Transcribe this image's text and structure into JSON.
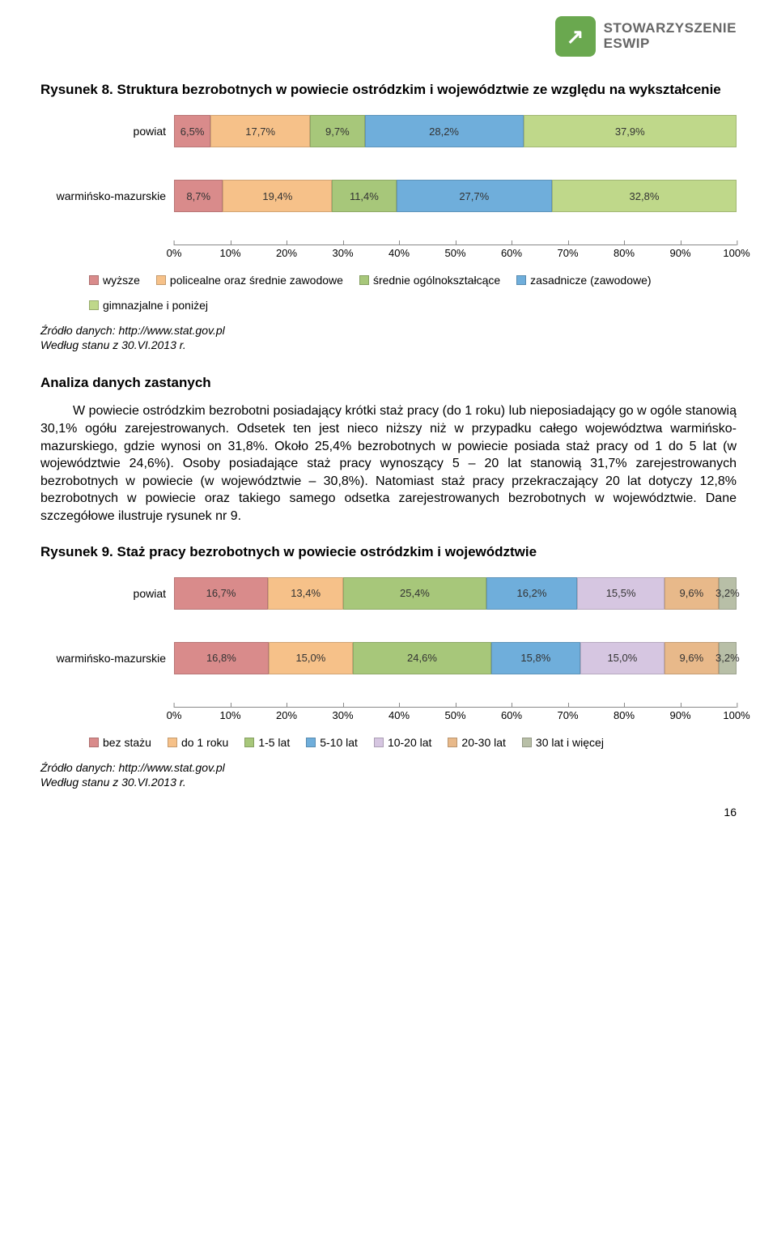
{
  "logo": {
    "line1": "STOWARZYSZENIE",
    "line2": "ESWIP"
  },
  "figure8": {
    "title": "Rysunek 8. Struktura bezrobotnych w powiecie ostródzkim i województwie ze względu na wykształcenie",
    "type": "stacked-bar",
    "axis_ticks": [
      "0%",
      "10%",
      "20%",
      "30%",
      "40%",
      "50%",
      "60%",
      "70%",
      "80%",
      "90%",
      "100%"
    ],
    "legend": [
      "wyższe",
      "policealne oraz średnie zawodowe",
      "średnie ogólnokształcące",
      "zasadnicze (zawodowe)",
      "gimnazjalne i poniżej"
    ],
    "colors": [
      "#d98b8b",
      "#f6c189",
      "#a7c77a",
      "#6faedb",
      "#bfd88a"
    ],
    "rows": [
      {
        "label": "powiat",
        "values": [
          6.5,
          17.7,
          9.7,
          28.2,
          37.9
        ],
        "display": [
          "6,5%",
          "17,7%",
          "9,7%",
          "28,2%",
          "37,9%"
        ]
      },
      {
        "label": "warmińsko-mazurskie",
        "values": [
          8.7,
          19.4,
          11.4,
          27.7,
          32.8
        ],
        "display": [
          "8,7%",
          "19,4%",
          "11,4%",
          "27,7%",
          "32,8%"
        ]
      }
    ],
    "source1": "Źródło danych: http://www.stat.gov.pl",
    "source2": "Według stanu z 30.VI.2013 r."
  },
  "analysis_heading": "Analiza danych zastanych",
  "analysis_body": "W powiecie ostródzkim bezrobotni posiadający krótki staż pracy (do 1 roku) lub nieposiadający go w ogóle stanowią 30,1% ogółu zarejestrowanych. Odsetek ten jest nieco niższy niż w przypadku całego województwa warmińsko-mazurskiego, gdzie wynosi on 31,8%. Około 25,4% bezrobotnych w powiecie posiada staż pracy od 1 do 5 lat (w województwie 24,6%). Osoby posiadające staż pracy wynoszący 5 – 20 lat stanowią 31,7% zarejestrowanych bezrobotnych w powiecie (w województwie – 30,8%). Natomiast staż pracy przekraczający 20 lat dotyczy 12,8% bezrobotnych w powiecie oraz takiego samego odsetka zarejestrowanych bezrobotnych w województwie. Dane szczegółowe ilustruje rysunek nr 9.",
  "figure9": {
    "title": "Rysunek 9. Staż pracy bezrobotnych w powiecie ostródzkim i województwie",
    "type": "stacked-bar",
    "axis_ticks": [
      "0%",
      "10%",
      "20%",
      "30%",
      "40%",
      "50%",
      "60%",
      "70%",
      "80%",
      "90%",
      "100%"
    ],
    "legend": [
      "bez stażu",
      "do 1 roku",
      "1-5 lat",
      "5-10 lat",
      "10-20 lat",
      "20-30 lat",
      "30 lat i więcej"
    ],
    "colors": [
      "#d98b8b",
      "#f6c189",
      "#a7c77a",
      "#6faedb",
      "#d6c6e1",
      "#e8b98a",
      "#b8bfa7"
    ],
    "rows": [
      {
        "label": "powiat",
        "values": [
          16.7,
          13.4,
          25.4,
          16.2,
          15.5,
          9.6,
          3.2
        ],
        "display": [
          "16,7%",
          "13,4%",
          "25,4%",
          "16,2%",
          "15,5%",
          "9,6%",
          "3,2%"
        ]
      },
      {
        "label": "warmińsko-mazurskie",
        "values": [
          16.8,
          15.0,
          24.6,
          15.8,
          15.0,
          9.6,
          3.2
        ],
        "display": [
          "16,8%",
          "15,0%",
          "24,6%",
          "15,8%",
          "15,0%",
          "9,6%",
          "3,2%"
        ]
      }
    ],
    "source1": "Źródło danych: http://www.stat.gov.pl",
    "source2": "Według stanu z 30.VI.2013 r."
  },
  "page_number": "16"
}
